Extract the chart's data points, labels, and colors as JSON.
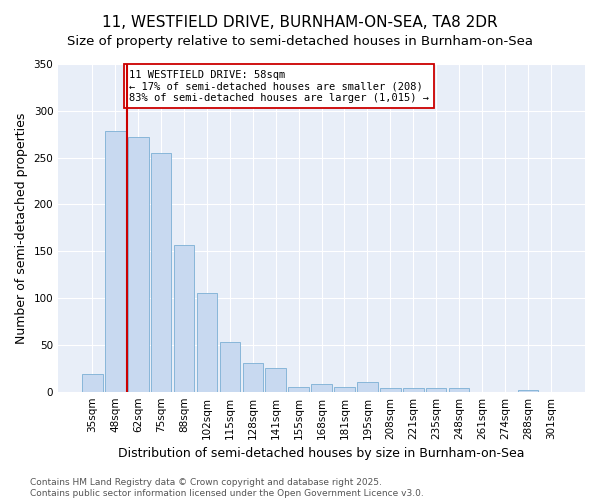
{
  "title": "11, WESTFIELD DRIVE, BURNHAM-ON-SEA, TA8 2DR",
  "subtitle": "Size of property relative to semi-detached houses in Burnham-on-Sea",
  "xlabel": "Distribution of semi-detached houses by size in Burnham-on-Sea",
  "ylabel": "Number of semi-detached properties",
  "categories": [
    "35sqm",
    "48sqm",
    "62sqm",
    "75sqm",
    "88sqm",
    "102sqm",
    "115sqm",
    "128sqm",
    "141sqm",
    "155sqm",
    "168sqm",
    "181sqm",
    "195sqm",
    "208sqm",
    "221sqm",
    "235sqm",
    "248sqm",
    "261sqm",
    "274sqm",
    "288sqm",
    "301sqm"
  ],
  "values": [
    19,
    278,
    272,
    255,
    157,
    105,
    53,
    31,
    25,
    5,
    8,
    5,
    10,
    4,
    4,
    4,
    4,
    0,
    0,
    2,
    0
  ],
  "bar_color": "#c8d9f0",
  "bar_edge_color": "#7bafd4",
  "vline_x": 1.5,
  "vline_color": "#cc0000",
  "annotation_text": "11 WESTFIELD DRIVE: 58sqm\n← 17% of semi-detached houses are smaller (208)\n83% of semi-detached houses are larger (1,015) →",
  "annotation_box_facecolor": "#ffffff",
  "annotation_box_edgecolor": "#cc0000",
  "ylim": [
    0,
    350
  ],
  "yticks": [
    0,
    50,
    100,
    150,
    200,
    250,
    300,
    350
  ],
  "plot_bg_color": "#e8eef8",
  "fig_bg_color": "#ffffff",
  "grid_color": "#ffffff",
  "footer": "Contains HM Land Registry data © Crown copyright and database right 2025.\nContains public sector information licensed under the Open Government Licence v3.0.",
  "title_fontsize": 11,
  "subtitle_fontsize": 9.5,
  "axis_label_fontsize": 9,
  "tick_fontsize": 7.5,
  "footer_fontsize": 6.5,
  "annotation_fontsize": 7.5
}
